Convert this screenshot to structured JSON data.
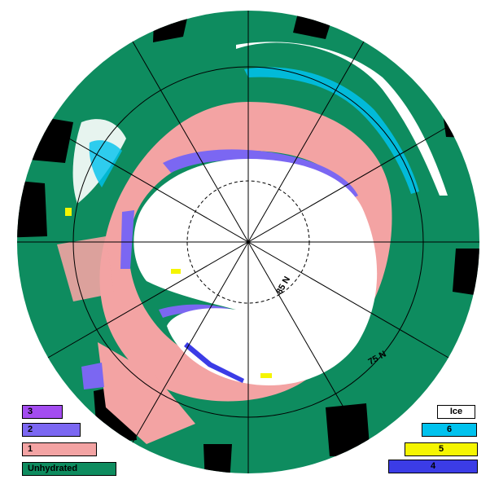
{
  "map": {
    "latitude_labels": {
      "inner": "85 N",
      "outer": "75 N"
    },
    "colors": {
      "background": "#ffffff",
      "outside_mask": "#000000",
      "unhydrated": "#0e8c5f",
      "class_1": "#f3a3a3",
      "class_2": "#7b67f2",
      "class_3": "#a34cf0",
      "class_4": "#3b3ce6",
      "class_5": "#f5f500",
      "class_6": "#00c2ee",
      "ice": "#ffffff"
    }
  },
  "legend": {
    "left": [
      {
        "label": "3",
        "color": "#a34cf0"
      },
      {
        "label": "2",
        "color": "#7b67f2"
      },
      {
        "label": "1",
        "color": "#f3a3a3"
      },
      {
        "label": "Unhydrated",
        "color": "#0e8c5f"
      }
    ],
    "right": [
      {
        "label": "Ice",
        "color": "#ffffff"
      },
      {
        "label": "6",
        "color": "#00c2ee"
      },
      {
        "label": "5",
        "color": "#f5f500"
      },
      {
        "label": "4",
        "color": "#3b3ce6"
      }
    ]
  }
}
